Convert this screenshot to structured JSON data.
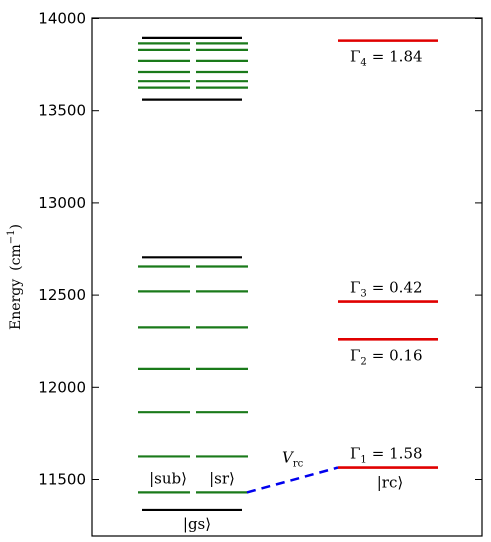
{
  "diagram": {
    "y_axis": {
      "label": "Energy",
      "unit_prefix": "(cm",
      "unit_exp": "−1",
      "unit_suffix": ")",
      "range": [
        11300,
        14000
      ],
      "ticks": [
        11500,
        12000,
        12500,
        13000,
        13500,
        14000
      ],
      "tick_labels": [
        "11500",
        "12000",
        "12500",
        "13000",
        "13500",
        "14000"
      ]
    },
    "left_manifold": {
      "black_levels": [
        13560,
        13895,
        12705
      ],
      "green_levels": [
        13625,
        13660,
        13710,
        13770,
        13830,
        13865,
        12655,
        12520,
        12325,
        12100,
        11865,
        11625,
        11430
      ],
      "colors": {
        "black": "#000000",
        "green": "#1a7a1a"
      }
    },
    "ground_state": {
      "energy": 11335,
      "label": "|gs⟩"
    },
    "sub_label": "|sub⟩",
    "sr_label": "|sr⟩",
    "rc_states": [
      {
        "energy": 11565,
        "gamma_symbol": "Γ",
        "gamma_index": "1",
        "gamma_value": "= 1.58",
        "label": "|rc⟩"
      },
      {
        "energy": 12260,
        "gamma_symbol": "Γ",
        "gamma_index": "2",
        "gamma_value": "= 0.16"
      },
      {
        "energy": 12465,
        "gamma_symbol": "Γ",
        "gamma_index": "3",
        "gamma_value": "= 0.42"
      },
      {
        "energy": 13880,
        "gamma_symbol": "Γ",
        "gamma_index": "4",
        "gamma_value": "= 1.84"
      }
    ],
    "rc_color": "#e00000",
    "coupling": {
      "symbol": "V",
      "subscript": "rc",
      "color": "#0000ee",
      "from_energy": 11430,
      "to_energy": 11565
    }
  }
}
